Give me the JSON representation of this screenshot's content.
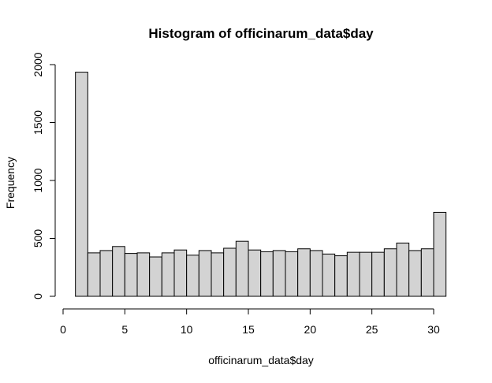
{
  "chart_data": {
    "type": "bar",
    "title": "Histogram of officinarum_data$day",
    "xlabel": "officinarum_data$day",
    "ylabel": "Frequency",
    "bin_edges": [
      1,
      2,
      3,
      4,
      5,
      6,
      7,
      8,
      9,
      10,
      11,
      12,
      13,
      14,
      15,
      16,
      17,
      18,
      19,
      20,
      21,
      22,
      23,
      24,
      25,
      26,
      27,
      28,
      29,
      30,
      31
    ],
    "values": [
      1935,
      375,
      395,
      430,
      370,
      375,
      340,
      375,
      400,
      355,
      395,
      375,
      415,
      475,
      400,
      385,
      395,
      385,
      410,
      395,
      365,
      350,
      380,
      380,
      380,
      410,
      460,
      395,
      410,
      725
    ],
    "xlim": [
      0,
      31
    ],
    "ylim": [
      0,
      2000
    ],
    "x_ticks": [
      "0",
      "5",
      "10",
      "15",
      "20",
      "25",
      "30"
    ],
    "y_ticks": [
      "0",
      "500",
      "1000",
      "1500",
      "2000"
    ],
    "bar_color": "#d3d3d3",
    "grid": false
  }
}
